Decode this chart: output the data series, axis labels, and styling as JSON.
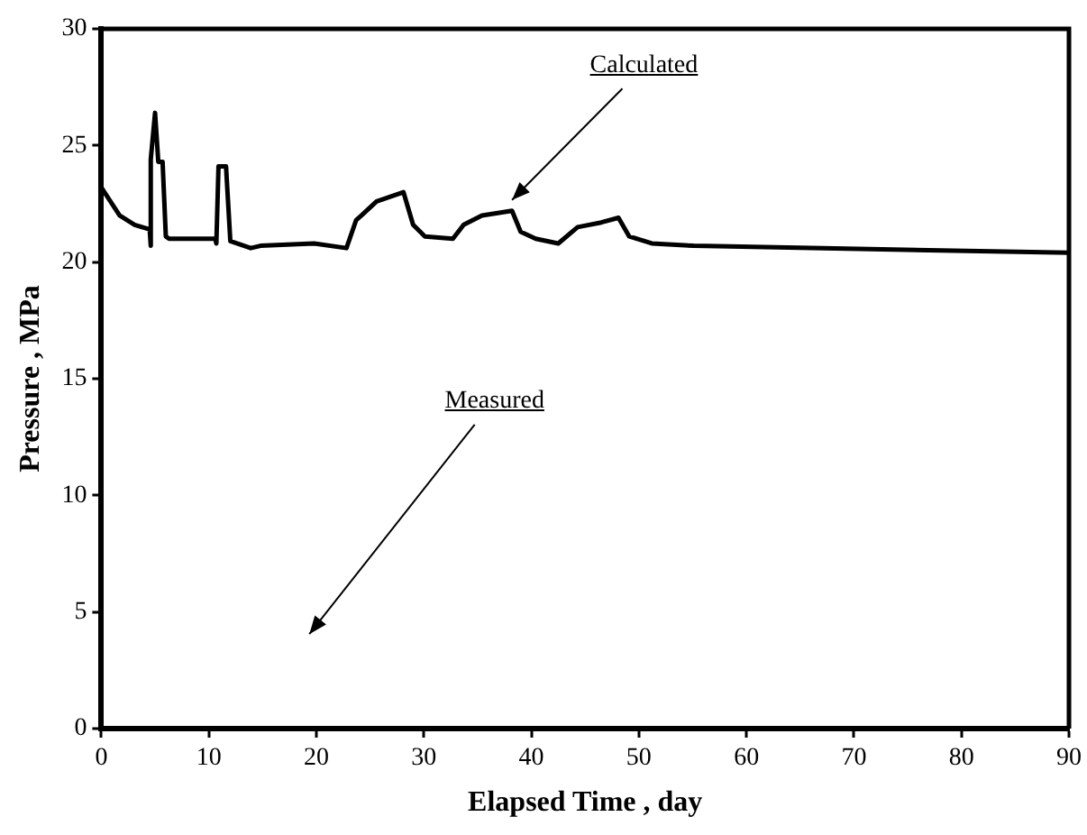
{
  "chart_data": {
    "type": "line",
    "xlabel": "Elapsed Time , day",
    "ylabel": "Pressure , MPa",
    "xlim": [
      0,
      90
    ],
    "xticks": [
      0,
      10,
      20,
      30,
      40,
      50,
      60,
      70,
      80,
      90
    ],
    "ylim": [
      0,
      30
    ],
    "yticks": [
      0,
      5,
      10,
      15,
      20,
      25,
      30
    ],
    "grid": false,
    "legend": false,
    "marker": "none",
    "line_style": "solid",
    "series": [
      {
        "name": "Calculated",
        "color": "#000000",
        "x": [
          0,
          1.7,
          3.1,
          4.5,
          4.6,
          4.6,
          5.0,
          5.3,
          5.7,
          6.0,
          6.3,
          10.6,
          10.7,
          10.9,
          11.6,
          12.0,
          13.9,
          14.8,
          19.8,
          22.8,
          23.7,
          24.2,
          25.6,
          28.1,
          29.0,
          30.1,
          32.7,
          33.7,
          35.4,
          38.2,
          39.0,
          40.4,
          42.5,
          44.3,
          46.5,
          48.1,
          49.1,
          51.2,
          55.1,
          90
        ],
        "values": [
          23.2,
          22.0,
          21.6,
          21.4,
          20.7,
          24.4,
          26.4,
          24.3,
          24.3,
          21.1,
          21.0,
          21.0,
          20.8,
          24.1,
          24.1,
          20.9,
          20.6,
          20.7,
          20.8,
          20.6,
          21.8,
          22.0,
          22.6,
          23.0,
          21.6,
          21.1,
          21.0,
          21.6,
          22.0,
          22.2,
          21.3,
          21.0,
          20.8,
          21.5,
          21.7,
          21.9,
          21.1,
          20.8,
          20.7,
          20.4
        ]
      }
    ],
    "annotations": [
      "Measured"
    ]
  }
}
